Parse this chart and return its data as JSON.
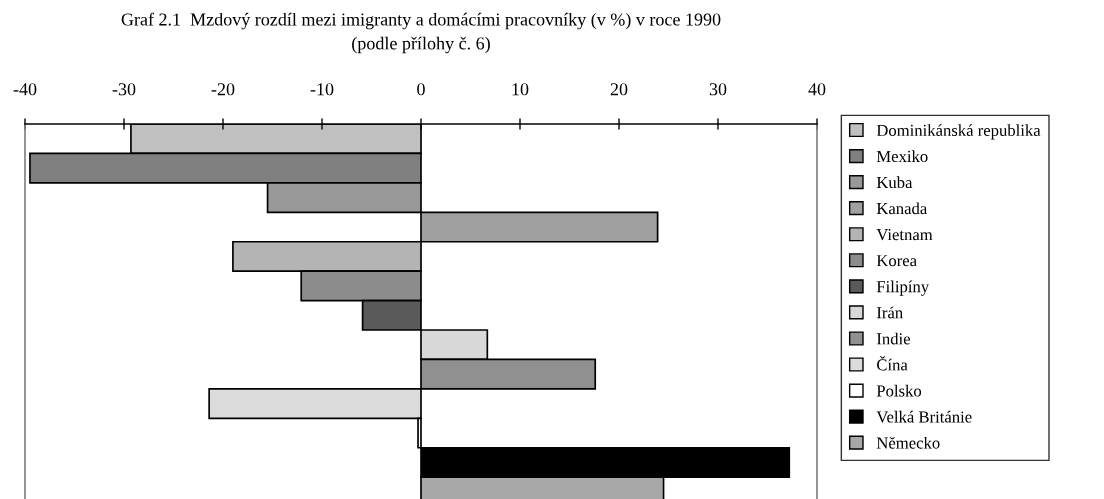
{
  "chart_data": {
    "type": "bar",
    "orientation": "horizontal",
    "title": "Graf 2.1  Mzdový rozdíl mezi imigranty a domácími pracovníky (v %) v roce 1990",
    "subtitle": "(podle přílohy č. 6)",
    "categories": [
      null
    ],
    "series": [
      {
        "name": "Dominikánská republika",
        "color": "#c0c0c0",
        "values": [
          -29.3
        ]
      },
      {
        "name": "Mexiko",
        "color": "#808080",
        "values": [
          -39.5
        ]
      },
      {
        "name": "Kuba",
        "color": "#999999",
        "values": [
          -15.5
        ]
      },
      {
        "name": "Kanada",
        "color": "#a0a0a0",
        "values": [
          23.9
        ]
      },
      {
        "name": "Vietnam",
        "color": "#b4b4b4",
        "values": [
          -19.0
        ]
      },
      {
        "name": "Korea",
        "color": "#8c8c8c",
        "values": [
          -12.1
        ]
      },
      {
        "name": "Filipíny",
        "color": "#5a5a5a",
        "values": [
          -5.9
        ]
      },
      {
        "name": "Irán",
        "color": "#d8d8d8",
        "values": [
          6.7
        ]
      },
      {
        "name": "Indie",
        "color": "#909090",
        "values": [
          17.6
        ]
      },
      {
        "name": "Čína",
        "color": "#dcdcdc",
        "values": [
          -21.4
        ]
      },
      {
        "name": "Polsko",
        "color": "#ffffff",
        "values": [
          -0.3
        ]
      },
      {
        "name": "Velká Británie",
        "color": "#000000",
        "values": [
          37.2
        ]
      },
      {
        "name": "Německo",
        "color": "#a8a8a8",
        "values": [
          24.5
        ]
      }
    ],
    "xlim": [
      -40,
      40
    ],
    "xticks": [
      -40,
      -30,
      -20,
      -10,
      0,
      10,
      20,
      30,
      40
    ],
    "tick_labels": "x",
    "legend": "right",
    "grid": false
  }
}
